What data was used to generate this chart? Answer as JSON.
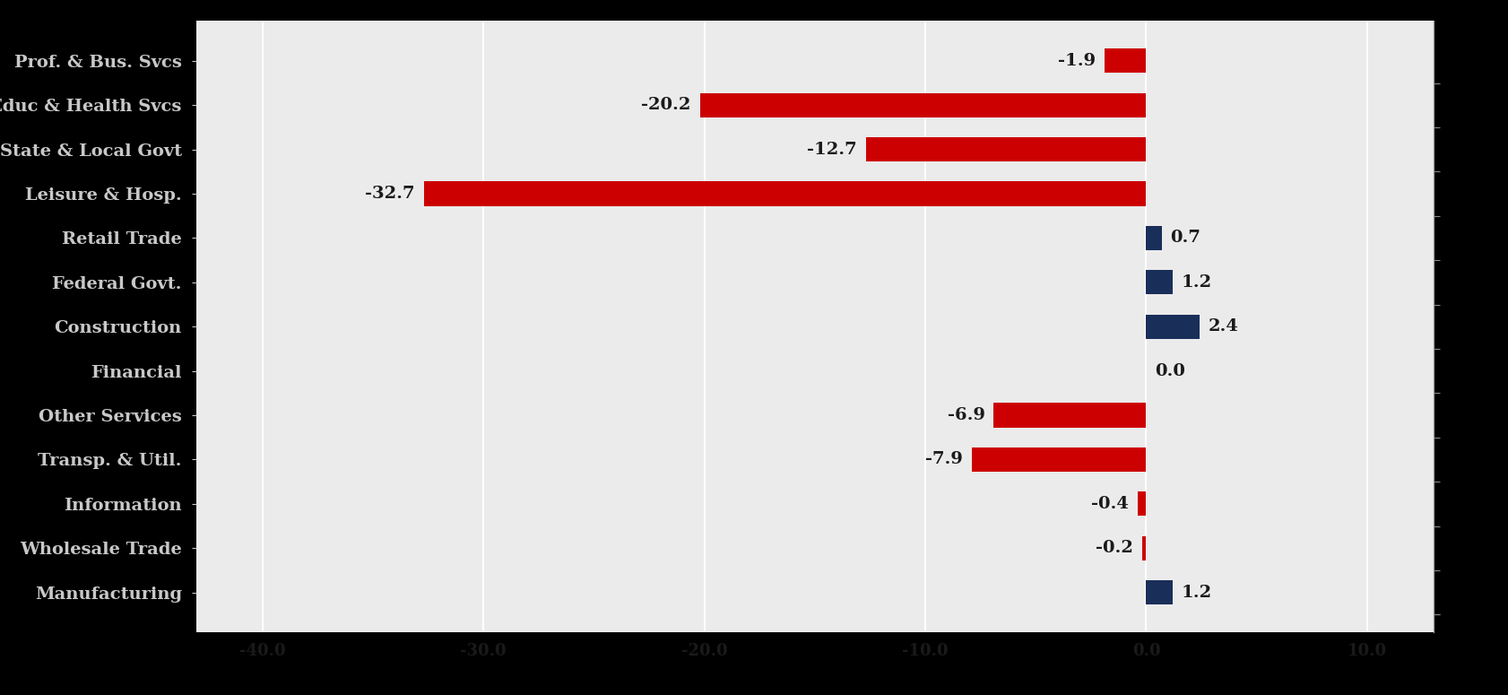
{
  "categories": [
    "Prof. & Bus. Svcs",
    "Educ & Health Svcs",
    "State & Local Govt",
    "Leisure & Hosp.",
    "Retail Trade",
    "Federal Govt.",
    "Construction",
    "Financial",
    "Other Services",
    "Transp. & Util.",
    "Information",
    "Wholesale Trade",
    "Manufacturing"
  ],
  "values": [
    -1.9,
    -20.2,
    -12.7,
    -32.7,
    0.7,
    1.2,
    2.4,
    0.0,
    -6.9,
    -7.9,
    -0.4,
    -0.2,
    1.2
  ],
  "bar_colors": [
    "#cc0000",
    "#cc0000",
    "#cc0000",
    "#cc0000",
    "#1a2e5a",
    "#1a2e5a",
    "#1a2e5a",
    "#cc0000",
    "#cc0000",
    "#cc0000",
    "#cc0000",
    "#cc0000",
    "#1a2e5a"
  ],
  "xlim": [
    -43,
    13
  ],
  "xticks": [
    -40.0,
    -30.0,
    -20.0,
    -10.0,
    0.0,
    10.0
  ],
  "figure_bg": "#000000",
  "plot_bg": "#ebebeb",
  "grid_color": "#ffffff",
  "label_color": "#c8c8c8",
  "tick_label_color": "#1a1a1a",
  "bar_height": 0.55,
  "label_fontsize": 14,
  "tick_fontsize": 13,
  "value_fontsize": 14
}
